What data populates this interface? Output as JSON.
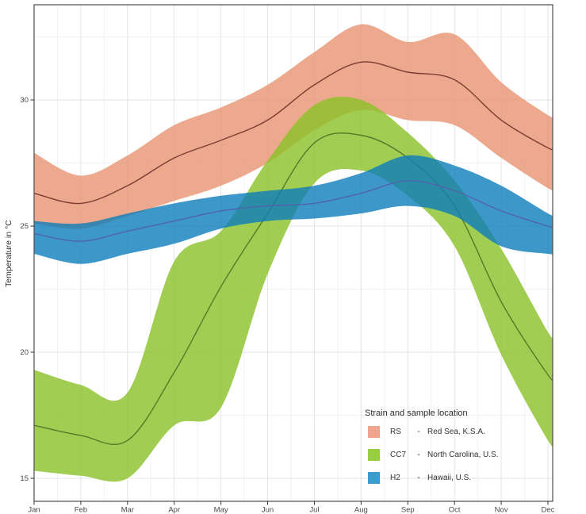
{
  "chart_data": {
    "type": "line",
    "title": "",
    "x": {
      "label": "",
      "categories": [
        "Jan",
        "Feb",
        "Mar",
        "Apr",
        "May",
        "Jun",
        "Jul",
        "Aug",
        "Sep",
        "Oct",
        "Nov",
        "Dec"
      ]
    },
    "y": {
      "label": "Temperature in °C",
      "ticks": [
        15,
        20,
        25,
        30
      ],
      "minor_ticks": [
        17.5,
        22.5,
        27.5,
        32.5
      ],
      "range": [
        14.1,
        33.8
      ]
    },
    "grid": {
      "show": true,
      "major_color": "#E4E4E4",
      "minor_color": "#F2F2F2"
    },
    "panel": {
      "border_color": "#4D4D4D",
      "background": "#FFFFFF"
    },
    "legend": {
      "title": "Strain and sample location",
      "separator": "-",
      "position": "inside-bottom-right"
    },
    "series": [
      {
        "code": "RS",
        "location": "Red Sea, K.S.A.",
        "swatch_color": "#EFA58F",
        "ribbon_fill": "#E99371",
        "ribbon_opacity": 0.8,
        "line_color": "#7E3B32",
        "mean": [
          26.3,
          25.9,
          26.6,
          27.7,
          28.4,
          29.2,
          30.6,
          31.5,
          31.1,
          30.8,
          29.2,
          28.1
        ],
        "lower": [
          25.1,
          24.9,
          25.4,
          26.0,
          26.6,
          27.5,
          28.8,
          29.6,
          29.2,
          29.0,
          27.7,
          26.5
        ],
        "upper": [
          27.9,
          27.0,
          27.8,
          29.0,
          29.7,
          30.6,
          31.9,
          33.0,
          32.3,
          32.6,
          30.7,
          29.4
        ]
      },
      {
        "code": "CC7",
        "location": "North Carolina, U.S.",
        "swatch_color": "#97CC43",
        "ribbon_fill": "#89C227",
        "ribbon_opacity": 0.8,
        "line_color": "#56792A",
        "mean": [
          17.1,
          16.7,
          16.5,
          19.2,
          22.6,
          25.5,
          28.3,
          28.6,
          27.7,
          25.8,
          22.0,
          19.1
        ],
        "lower": [
          15.3,
          15.1,
          15.0,
          17.1,
          17.8,
          23.1,
          26.7,
          27.2,
          26.2,
          24.2,
          19.9,
          16.5
        ],
        "upper": [
          19.3,
          18.7,
          18.4,
          23.6,
          24.8,
          27.6,
          29.8,
          30.0,
          28.7,
          26.8,
          24.1,
          20.8
        ]
      },
      {
        "code": "H2",
        "location": "Hawaii, U.S.",
        "swatch_color": "#3D9BD0",
        "ribbon_fill": "#0C7DBA",
        "ribbon_opacity": 0.8,
        "line_color": "#5163AE",
        "mean": [
          24.7,
          24.4,
          24.8,
          25.2,
          25.6,
          25.8,
          25.9,
          26.3,
          26.8,
          26.4,
          25.6,
          25.0
        ],
        "lower": [
          23.9,
          23.5,
          23.9,
          24.3,
          24.9,
          25.2,
          25.3,
          25.5,
          25.8,
          25.4,
          24.2,
          23.9
        ],
        "upper": [
          25.2,
          25.1,
          25.5,
          25.9,
          26.2,
          26.4,
          26.6,
          27.1,
          27.8,
          27.4,
          26.6,
          25.5
        ]
      }
    ]
  }
}
